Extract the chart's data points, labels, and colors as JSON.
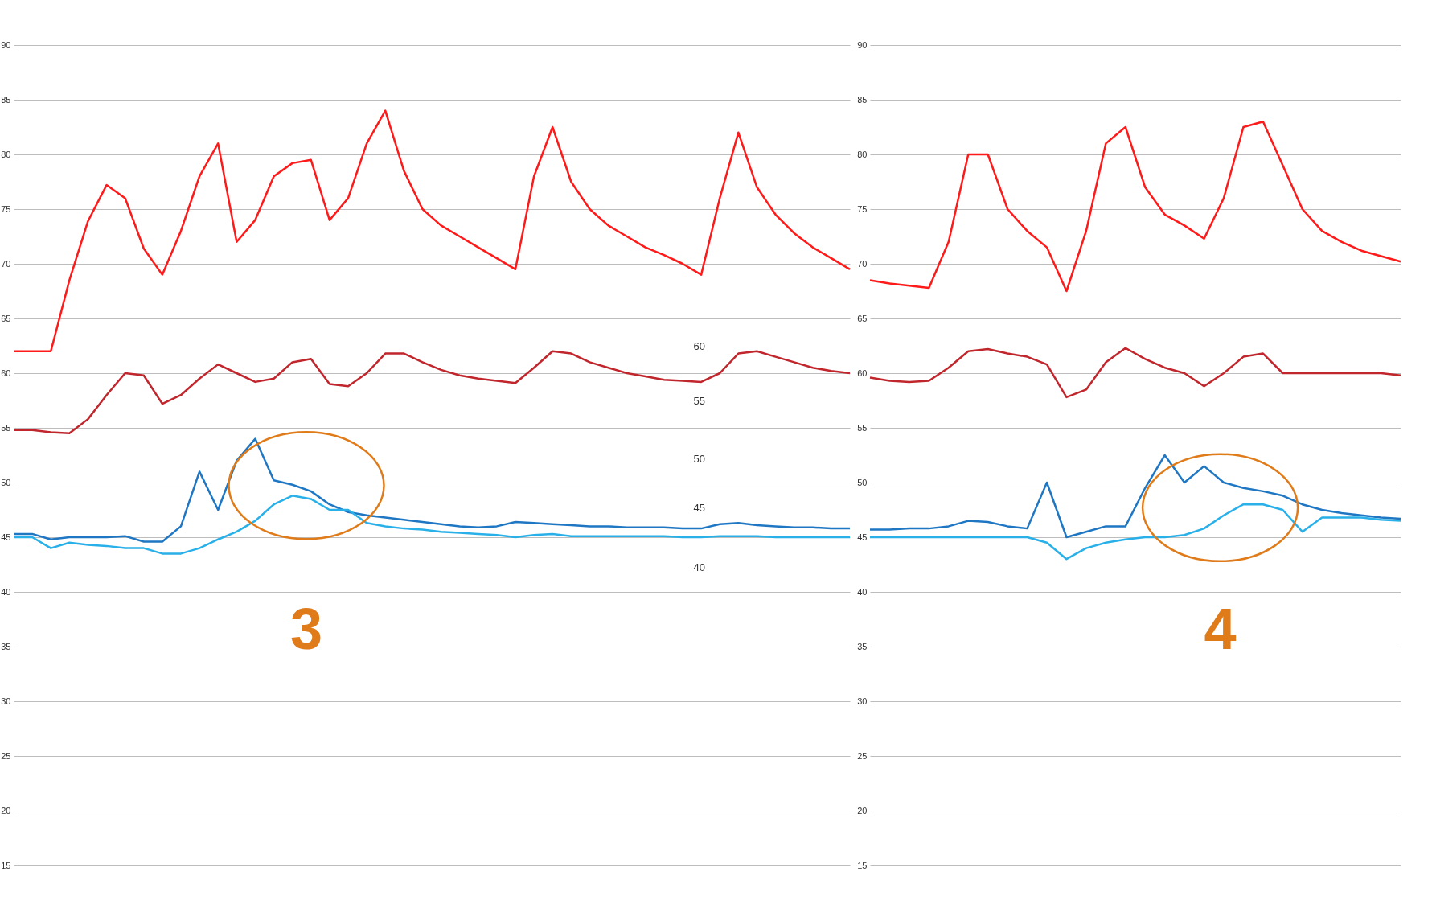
{
  "chart_data": [
    {
      "type": "line",
      "categories": [
        null,
        null,
        null,
        null,
        null,
        null,
        null,
        null,
        null,
        null,
        null,
        null,
        null,
        null,
        null,
        null,
        null,
        null,
        null,
        null,
        null,
        null,
        null,
        null,
        null,
        null,
        null,
        null,
        null,
        null,
        null,
        null,
        null,
        null,
        null,
        null,
        null,
        null,
        null,
        null,
        null,
        null,
        null,
        null,
        null,
        null
      ],
      "ylim": [
        15,
        90
      ],
      "yticks": [
        15,
        20,
        25,
        30,
        35,
        40,
        45,
        50,
        55,
        60,
        65,
        70,
        75,
        80,
        85,
        90
      ],
      "grid": "y",
      "tick_labels": "y",
      "series": [
        {
          "color": "#ff1a1a",
          "values": [
            62,
            62,
            62,
            68.5,
            73.9,
            77.2,
            76,
            71.4,
            69,
            73,
            78,
            81,
            72,
            74,
            78,
            79.2,
            79.5,
            74,
            76,
            81,
            84,
            78.5,
            75,
            73.5,
            72.5,
            71.5,
            70.5,
            69.5,
            78,
            82.5,
            77.5,
            75,
            73.5,
            72.5,
            71.5,
            70.8,
            70,
            69,
            76,
            82,
            77,
            74.5,
            72.8,
            71.5,
            70.5,
            69.5
          ]
        },
        {
          "color": "#c0262c",
          "values": [
            54.8,
            54.8,
            54.6,
            54.5,
            55.8,
            58,
            60,
            59.8,
            57.2,
            58,
            59.5,
            60.8,
            60,
            59.2,
            59.5,
            61,
            61.3,
            59,
            58.8,
            60,
            61.8,
            61.8,
            61,
            60.3,
            59.8,
            59.5,
            59.3,
            59.1,
            60.5,
            62,
            61.8,
            61,
            60.5,
            60,
            59.7,
            59.4,
            59.3,
            59.2,
            60,
            61.8,
            62,
            61.5,
            61,
            60.5,
            60.2,
            60
          ]
        },
        {
          "color": "#1f77c4",
          "values": [
            45.3,
            45.3,
            44.8,
            45,
            45,
            45,
            45.1,
            44.6,
            44.6,
            46,
            51,
            47.5,
            52,
            54,
            50.2,
            49.8,
            49.2,
            48,
            47.3,
            47,
            46.8,
            46.6,
            46.4,
            46.2,
            46,
            45.9,
            46,
            46.4,
            46.3,
            46.2,
            46.1,
            46,
            46,
            45.9,
            45.9,
            45.9,
            45.8,
            45.8,
            46.2,
            46.3,
            46.1,
            46,
            45.9,
            45.9,
            45.8,
            45.8
          ]
        },
        {
          "color": "#29b0e8",
          "values": [
            45,
            45,
            44,
            44.5,
            44.3,
            44.2,
            44,
            44,
            43.5,
            43.5,
            44,
            44.8,
            45.5,
            46.5,
            48,
            48.8,
            48.5,
            47.5,
            47.5,
            46.3,
            46,
            45.8,
            45.7,
            45.5,
            45.4,
            45.3,
            45.2,
            45,
            45.2,
            45.3,
            45.1,
            45.1,
            45.1,
            45.1,
            45.1,
            45.1,
            45,
            45,
            45.1,
            45.1,
            45.1,
            45,
            45,
            45,
            45,
            45
          ]
        }
      ],
      "annotations": [
        "3",
        "60",
        "55",
        "50",
        "45",
        "40"
      ]
    },
    {
      "type": "line",
      "categories": [
        null,
        null,
        null,
        null,
        null,
        null,
        null,
        null,
        null,
        null,
        null,
        null,
        null,
        null,
        null,
        null,
        null,
        null,
        null,
        null,
        null,
        null,
        null,
        null,
        null,
        null,
        null,
        null
      ],
      "ylim": [
        15,
        90
      ],
      "yticks": [
        15,
        20,
        25,
        30,
        35,
        40,
        45,
        50,
        55,
        60,
        65,
        70,
        75,
        80,
        85,
        90
      ],
      "grid": "y",
      "tick_labels": "y",
      "series": [
        {
          "color": "#ff1a1a",
          "values": [
            68.5,
            68.2,
            68,
            67.8,
            72,
            80,
            80,
            75,
            73,
            71.5,
            67.5,
            73,
            81,
            82.5,
            77,
            74.5,
            73.5,
            72.3,
            76,
            82.5,
            83,
            79,
            75,
            73,
            72,
            71.2,
            70.7,
            70.2
          ]
        },
        {
          "color": "#c0262c",
          "values": [
            59.6,
            59.3,
            59.2,
            59.3,
            60.5,
            62,
            62.2,
            61.8,
            61.5,
            60.8,
            57.8,
            58.5,
            61,
            62.3,
            61.3,
            60.5,
            60,
            58.8,
            60,
            61.5,
            61.8,
            60,
            60,
            60,
            60,
            60,
            60,
            59.8
          ]
        },
        {
          "color": "#1f77c4",
          "values": [
            45.7,
            45.7,
            45.8,
            45.8,
            46,
            46.5,
            46.4,
            46,
            45.8,
            50,
            45,
            45.5,
            46,
            46,
            49.5,
            52.5,
            50,
            51.5,
            50,
            49.5,
            49.2,
            48.8,
            48,
            47.5,
            47.2,
            47,
            46.8,
            46.7
          ]
        },
        {
          "color": "#29b0e8",
          "values": [
            45,
            45,
            45,
            45,
            45,
            45,
            45,
            45,
            45,
            44.5,
            43,
            44,
            44.5,
            44.8,
            45,
            45,
            45.2,
            45.8,
            47,
            48,
            48,
            47.5,
            45.5,
            46.8,
            46.8,
            46.8,
            46.6,
            46.5
          ]
        }
      ],
      "annotations": [
        "4"
      ]
    }
  ]
}
